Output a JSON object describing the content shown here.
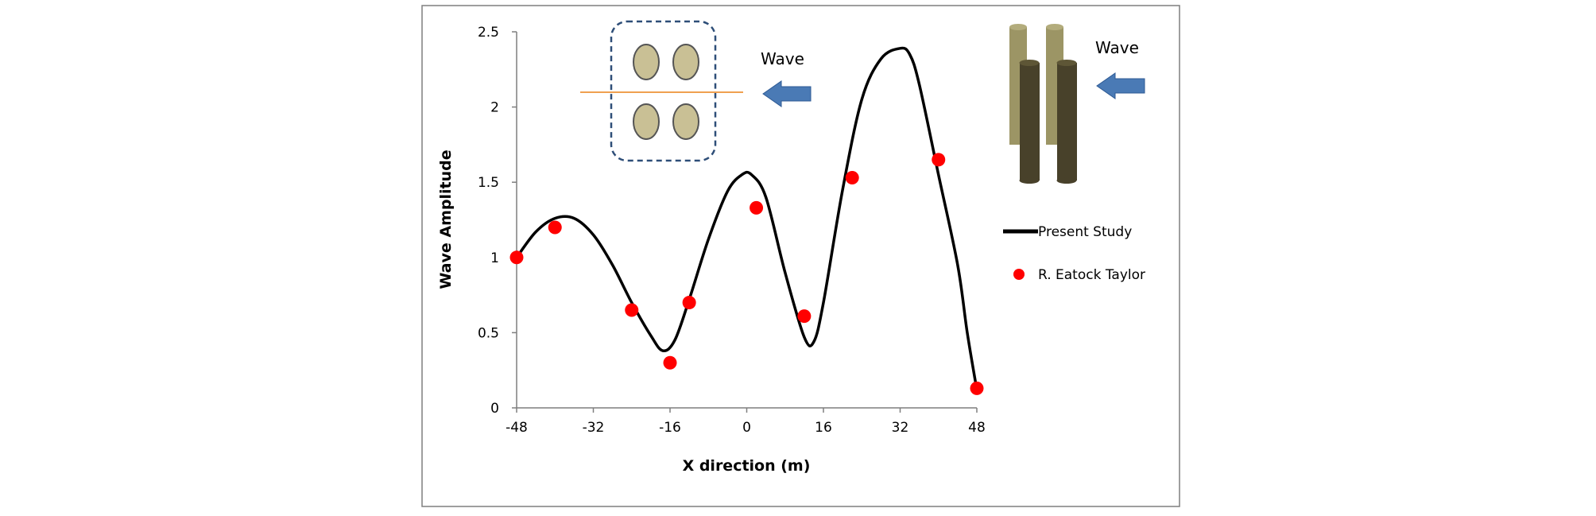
{
  "chart_data": {
    "type": "line",
    "xlabel": "X direction (m)",
    "ylabel": "Wave Amplitude",
    "xlim": [
      -48,
      48
    ],
    "ylim": [
      0,
      2.5
    ],
    "x_ticks": [
      "-48",
      "-32",
      "-16",
      "0",
      "16",
      "32",
      "48"
    ],
    "y_ticks": [
      "0",
      "0.5",
      "1",
      "1.5",
      "2",
      "2.5"
    ],
    "grid": false,
    "legend_position": "right",
    "series": [
      {
        "name": "Present Study",
        "kind": "line",
        "color": "#000000",
        "x": [
          -48,
          -44,
          -40,
          -36,
          -32,
          -28,
          -24,
          -20,
          -17.5,
          -15,
          -12,
          -8,
          -4,
          -1,
          1,
          4,
          8,
          12,
          14,
          16,
          20,
          24,
          28,
          32,
          34,
          36,
          40,
          44,
          46,
          48
        ],
        "y": [
          1.0,
          1.17,
          1.26,
          1.26,
          1.15,
          0.95,
          0.7,
          0.48,
          0.38,
          0.45,
          0.72,
          1.12,
          1.44,
          1.55,
          1.55,
          1.4,
          0.9,
          0.47,
          0.44,
          0.7,
          1.45,
          2.05,
          2.32,
          2.39,
          2.35,
          2.15,
          1.55,
          0.95,
          0.5,
          0.12
        ]
      },
      {
        "name": "R. Eatock Taylor",
        "kind": "scatter",
        "color": "#ff0000",
        "x": [
          -48,
          -40,
          -24,
          -16,
          -12,
          2,
          12,
          22,
          40,
          48
        ],
        "y": [
          1.0,
          1.2,
          0.65,
          0.3,
          0.7,
          1.33,
          0.61,
          1.53,
          1.65,
          0.13
        ]
      }
    ],
    "annotations": {
      "wave_label_left": "Wave",
      "wave_label_right": "Wave"
    }
  },
  "colors": {
    "cylinder_top_view": "#c9c095",
    "dashed_box": "#2e4e78",
    "orange_line": "#f0a050",
    "arrow": "#4a7ab5",
    "cylinder_light": "#9c9565",
    "cylinder_dark": "#48412a"
  }
}
